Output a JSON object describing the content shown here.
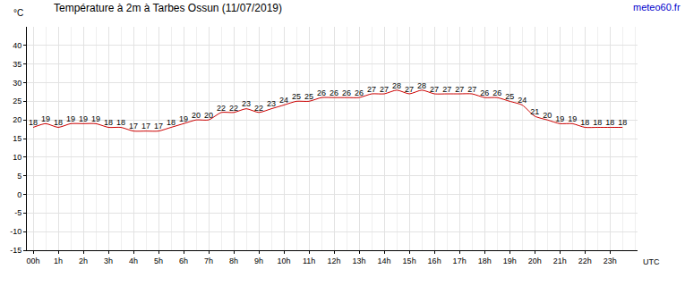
{
  "chart_data": {
    "type": "line",
    "title": "Température à 2m à Tarbes Ossun (11/07/2019)",
    "y_label": "°C",
    "x_label": "UTC",
    "annotations": [
      "meteo60.fr"
    ],
    "x": [
      0,
      0.5,
      1,
      1.5,
      2,
      2.5,
      3,
      3.5,
      4,
      4.5,
      5,
      5.5,
      6,
      6.5,
      7,
      7.5,
      8,
      8.5,
      9,
      9.5,
      10,
      10.5,
      11,
      11.5,
      12,
      12.5,
      13,
      13.5,
      14,
      14.5,
      15,
      15.5,
      16,
      16.5,
      17,
      17.5,
      18,
      18.5,
      19,
      19.5,
      20,
      20.5,
      21,
      21.5,
      22,
      22.5,
      23,
      23.5
    ],
    "values": [
      18,
      19,
      18,
      19,
      19,
      19,
      18,
      18,
      17,
      17,
      17,
      18,
      19,
      20,
      20,
      22,
      22,
      23,
      22,
      23,
      24,
      25,
      25,
      26,
      26,
      26,
      26,
      27,
      27,
      28,
      27,
      28,
      27,
      27,
      27,
      27,
      26,
      26,
      25,
      24,
      21,
      20,
      19,
      19,
      18,
      18,
      18,
      18
    ],
    "color": "#cc0000",
    "xlim": [
      -0.25,
      24.1
    ],
    "xticks": [
      {
        "value": 0,
        "label": "00h"
      },
      {
        "value": 1,
        "label": "1h"
      },
      {
        "value": 2,
        "label": "2h"
      },
      {
        "value": 3,
        "label": "3h"
      },
      {
        "value": 4,
        "label": "4h"
      },
      {
        "value": 5,
        "label": "5h"
      },
      {
        "value": 6,
        "label": "6h"
      },
      {
        "value": 7,
        "label": "7h"
      },
      {
        "value": 8,
        "label": "8h"
      },
      {
        "value": 9,
        "label": "9h"
      },
      {
        "value": 10,
        "label": "10h"
      },
      {
        "value": 11,
        "label": "11h"
      },
      {
        "value": 12,
        "label": "12h"
      },
      {
        "value": 13,
        "label": "13h"
      },
      {
        "value": 14,
        "label": "14h"
      },
      {
        "value": 15,
        "label": "15h"
      },
      {
        "value": 16,
        "label": "16h"
      },
      {
        "value": 17,
        "label": "17h"
      },
      {
        "value": 18,
        "label": "18h"
      },
      {
        "value": 19,
        "label": "19h"
      },
      {
        "value": 20,
        "label": "20h"
      },
      {
        "value": 21,
        "label": "21h"
      },
      {
        "value": 22,
        "label": "22h"
      },
      {
        "value": 23,
        "label": "23h"
      }
    ],
    "ylim": [
      -15,
      45
    ],
    "yticks": [
      -15,
      -10,
      -5,
      0,
      5,
      10,
      15,
      20,
      25,
      30,
      35,
      40
    ],
    "grid": true,
    "data_labels": true
  }
}
